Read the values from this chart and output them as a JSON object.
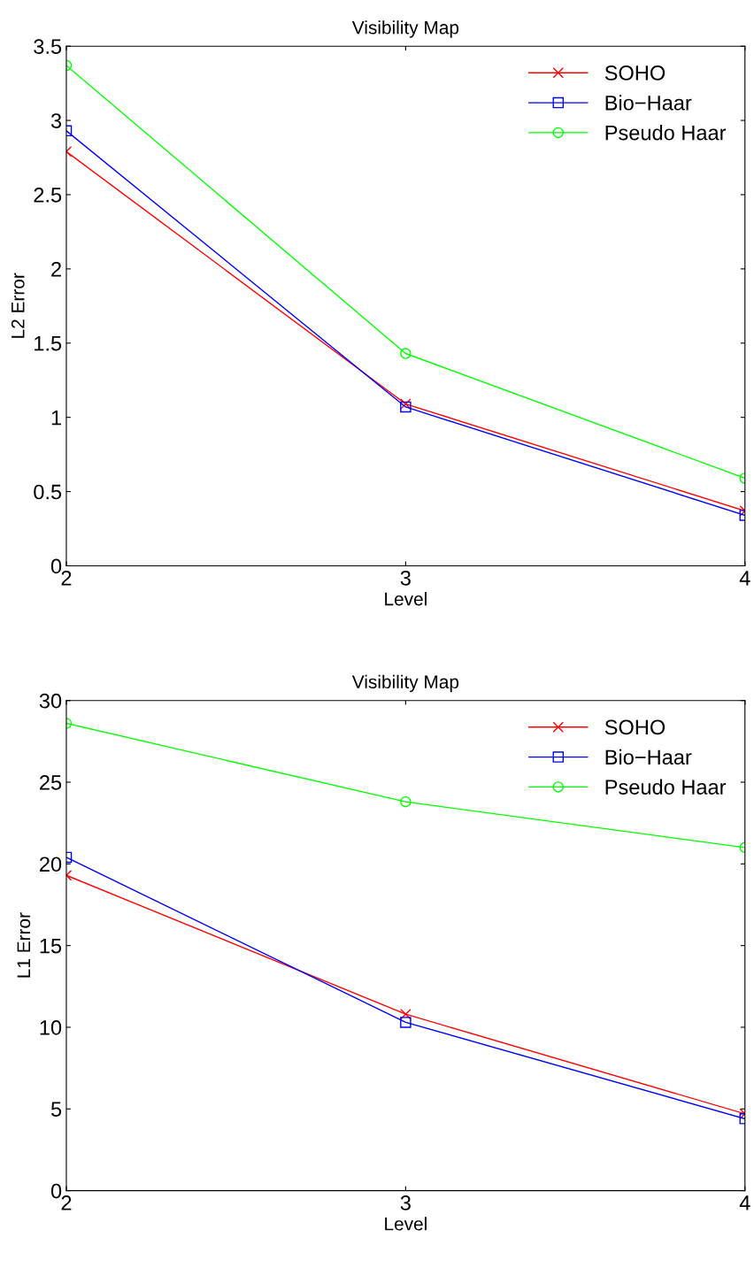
{
  "chart_data": [
    {
      "type": "line",
      "title": "Visibility Map",
      "xlabel": "Level",
      "ylabel": "L2 Error",
      "x": [
        2,
        3,
        4
      ],
      "xlim": [
        2,
        4
      ],
      "xticks": [
        2,
        3,
        4
      ],
      "ylim": [
        0,
        3.5
      ],
      "yticks": [
        0,
        0.5,
        1,
        1.5,
        2,
        2.5,
        3,
        3.5
      ],
      "grid": false,
      "legend": "top right",
      "series": [
        {
          "name": "SOHO",
          "color": "#ff0000",
          "marker": "cross",
          "values": [
            2.79,
            1.09,
            0.37
          ]
        },
        {
          "name": "Bio−Haar",
          "color": "#0000ff",
          "marker": "square",
          "values": [
            2.93,
            1.07,
            0.34
          ]
        },
        {
          "name": "Pseudo Haar",
          "color": "#00ff00",
          "marker": "circle",
          "values": [
            3.37,
            1.43,
            0.59
          ]
        }
      ]
    },
    {
      "type": "line",
      "title": "Visibility Map",
      "xlabel": "Level",
      "ylabel": "L1 Error",
      "x": [
        2,
        3,
        4
      ],
      "xlim": [
        2,
        4
      ],
      "xticks": [
        2,
        3,
        4
      ],
      "ylim": [
        0,
        30
      ],
      "yticks": [
        0,
        5,
        10,
        15,
        20,
        25,
        30
      ],
      "grid": false,
      "legend": "top right",
      "series": [
        {
          "name": "SOHO",
          "color": "#ff0000",
          "marker": "cross",
          "values": [
            19.3,
            10.8,
            4.7
          ]
        },
        {
          "name": "Bio−Haar",
          "color": "#0000ff",
          "marker": "square",
          "values": [
            20.4,
            10.3,
            4.4
          ]
        },
        {
          "name": "Pseudo Haar",
          "color": "#00ff00",
          "marker": "circle",
          "values": [
            28.6,
            23.8,
            21.0
          ]
        }
      ]
    }
  ]
}
